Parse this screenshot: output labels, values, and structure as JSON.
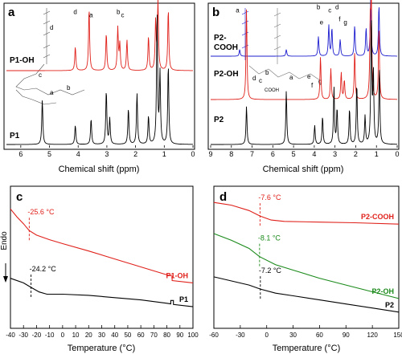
{
  "colors": {
    "red": "#e0201a",
    "blue": "#1c1ccf",
    "green": "#1a8a1a",
    "black": "#000000"
  },
  "chart_data": [
    {
      "id": "a",
      "type": "line",
      "panel_label": "a",
      "xlabel": "Chemical shift (ppm)",
      "x_ticks": [
        6,
        5,
        4,
        3,
        2,
        1,
        0
      ],
      "xlim": [
        6.5,
        0
      ],
      "series": [
        {
          "name": "P1-OH",
          "color": "red",
          "peaks": [
            [
              4.1,
              0.35
            ],
            [
              3.62,
              0.92
            ],
            [
              3.02,
              0.55
            ],
            [
              2.62,
              0.62
            ],
            [
              2.55,
              0.38
            ],
            [
              2.3,
              0.45
            ],
            [
              1.55,
              0.5
            ],
            [
              1.3,
              0.72
            ],
            [
              1.22,
              1.0
            ],
            [
              0.86,
              0.9
            ]
          ],
          "labels": [
            {
              "text": "a",
              "x": 3.55
            },
            {
              "text": "b",
              "x": 2.6
            },
            {
              "text": "c",
              "x": 2.45
            },
            {
              "text": "d",
              "x": 4.1
            }
          ]
        },
        {
          "name": "P1",
          "color": "black",
          "peaks": [
            [
              5.25,
              0.35
            ],
            [
              4.1,
              0.15
            ],
            [
              3.55,
              0.2
            ],
            [
              3.02,
              0.42
            ],
            [
              2.9,
              0.2
            ],
            [
              2.25,
              0.28
            ],
            [
              1.95,
              0.4
            ],
            [
              1.55,
              0.22
            ],
            [
              1.25,
              1.0
            ],
            [
              1.15,
              0.55
            ],
            [
              0.86,
              0.62
            ]
          ],
          "labels": []
        }
      ],
      "structure_labels": [
        "d",
        "c",
        "a",
        "b"
      ]
    },
    {
      "id": "b",
      "type": "line",
      "panel_label": "b",
      "xlabel": "Chemical shift (ppm)",
      "x_ticks": [
        9,
        8,
        7,
        6,
        5,
        4,
        3,
        2,
        1,
        0
      ],
      "xlim": [
        9,
        0
      ],
      "series": [
        {
          "name": "P2-COOH",
          "color": "blue",
          "peaks": [
            [
              7.6,
              0.12
            ],
            [
              5.35,
              0.12
            ],
            [
              3.8,
              0.35
            ],
            [
              3.3,
              0.55
            ],
            [
              3.15,
              0.5
            ],
            [
              2.75,
              0.3
            ],
            [
              2.05,
              0.55
            ],
            [
              1.5,
              0.5
            ],
            [
              1.28,
              1.0
            ],
            [
              0.88,
              0.92
            ]
          ],
          "labels": [
            {
              "text": "a",
              "x": 7.7
            },
            {
              "text": "b",
              "x": 3.8
            },
            {
              "text": "c",
              "x": 3.25
            },
            {
              "text": "d",
              "x": 2.9
            }
          ]
        },
        {
          "name": "P2-OH",
          "color": "red",
          "peaks": [
            [
              7.27,
              0.95
            ],
            [
              3.7,
              0.45
            ],
            [
              3.2,
              0.32
            ],
            [
              2.7,
              0.28
            ],
            [
              2.55,
              0.2
            ],
            [
              2.05,
              0.5
            ],
            [
              1.3,
              0.7
            ],
            [
              1.25,
              1.0
            ],
            [
              0.88,
              0.75
            ]
          ],
          "labels": [
            {
              "text": "e",
              "x": 3.65
            },
            {
              "text": "f",
              "x": 2.78
            },
            {
              "text": "g",
              "x": 2.5
            }
          ]
        },
        {
          "name": "P2",
          "color": "black",
          "peaks": [
            [
              7.27,
              0.3
            ],
            [
              5.35,
              0.42
            ],
            [
              3.98,
              0.15
            ],
            [
              3.6,
              0.22
            ],
            [
              3.05,
              0.45
            ],
            [
              2.9,
              0.28
            ],
            [
              2.3,
              0.28
            ],
            [
              1.95,
              0.48
            ],
            [
              1.55,
              0.22
            ],
            [
              1.25,
              1.0
            ],
            [
              1.15,
              0.55
            ],
            [
              0.86,
              0.6
            ]
          ],
          "labels": []
        }
      ],
      "structure_labels_cooh": [
        "a",
        "b",
        "c",
        "d"
      ],
      "structure_labels_oh": [
        "d",
        "c",
        "b",
        "a",
        "e",
        "f",
        "g"
      ],
      "structure_small": [
        "COOH"
      ]
    },
    {
      "id": "c",
      "type": "line",
      "panel_label": "c",
      "xlabel": "Temperature (°C)",
      "ylabel": "Endo",
      "x_ticks": [
        -40,
        -30,
        -20,
        -10,
        0,
        10,
        20,
        30,
        40,
        50,
        60,
        70,
        80,
        90,
        100
      ],
      "xlim": [
        -40,
        100
      ],
      "series": [
        {
          "name": "P1-OH",
          "color": "red",
          "points": [
            [
              -40,
              0.85
            ],
            [
              -35,
              0.78
            ],
            [
              -30,
              0.72
            ],
            [
              -25.6,
              0.66
            ],
            [
              -20,
              0.62
            ],
            [
              -10,
              0.58
            ],
            [
              0,
              0.545
            ],
            [
              20,
              0.48
            ],
            [
              40,
              0.41
            ],
            [
              60,
              0.34
            ],
            [
              80,
              0.27
            ],
            [
              84,
              0.26
            ],
            [
              84,
              0.22
            ],
            [
              100,
              0.2
            ]
          ],
          "tg": -25.6,
          "tg_label": "-25.6 °C"
        },
        {
          "name": "P1",
          "color": "black",
          "points": [
            [
              -40,
              0.24
            ],
            [
              -30,
              0.2
            ],
            [
              -24.2,
              0.16
            ],
            [
              -18,
              0.12
            ],
            [
              -12,
              0.1
            ],
            [
              0,
              0.1
            ],
            [
              20,
              0.09
            ],
            [
              40,
              0.07
            ],
            [
              60,
              0.05
            ],
            [
              80,
              0.02
            ],
            [
              83,
              0.015
            ],
            [
              83,
              0.045
            ],
            [
              85,
              0.045
            ],
            [
              85,
              0.01
            ],
            [
              100,
              -0.01
            ]
          ],
          "tg": -24.2,
          "tg_label": "-24.2 °C"
        }
      ]
    },
    {
      "id": "d",
      "type": "line",
      "panel_label": "d",
      "xlabel": "Temperature (°C)",
      "x_ticks": [
        -60,
        -30,
        0,
        30,
        60,
        90,
        120,
        150
      ],
      "xlim": [
        -60,
        150
      ],
      "series": [
        {
          "name": "P2-COOH",
          "color": "red",
          "points": [
            [
              -60,
              0.88
            ],
            [
              -40,
              0.86
            ],
            [
              -20,
              0.82
            ],
            [
              -7.6,
              0.78
            ],
            [
              5,
              0.75
            ],
            [
              20,
              0.74
            ],
            [
              60,
              0.735
            ],
            [
              100,
              0.73
            ],
            [
              150,
              0.72
            ]
          ],
          "tg": -7.6,
          "tg_label": "-7.6 °C"
        },
        {
          "name": "P2-OH",
          "color": "green",
          "points": [
            [
              -60,
              0.65
            ],
            [
              -40,
              0.6
            ],
            [
              -20,
              0.54
            ],
            [
              -8.1,
              0.48
            ],
            [
              10,
              0.42
            ],
            [
              30,
              0.38
            ],
            [
              60,
              0.32
            ],
            [
              90,
              0.27
            ],
            [
              120,
              0.22
            ],
            [
              150,
              0.17
            ]
          ],
          "tg": -8.1,
          "tg_label": "-8.1 °C"
        },
        {
          "name": "P2",
          "color": "black",
          "points": [
            [
              -60,
              0.33
            ],
            [
              -40,
              0.3
            ],
            [
              -20,
              0.27
            ],
            [
              -7.2,
              0.24
            ],
            [
              10,
              0.21
            ],
            [
              30,
              0.19
            ],
            [
              60,
              0.16
            ],
            [
              90,
              0.13
            ],
            [
              120,
              0.1
            ],
            [
              150,
              0.07
            ]
          ],
          "tg": -7.2,
          "tg_label": "-7.2 °C"
        }
      ]
    }
  ]
}
